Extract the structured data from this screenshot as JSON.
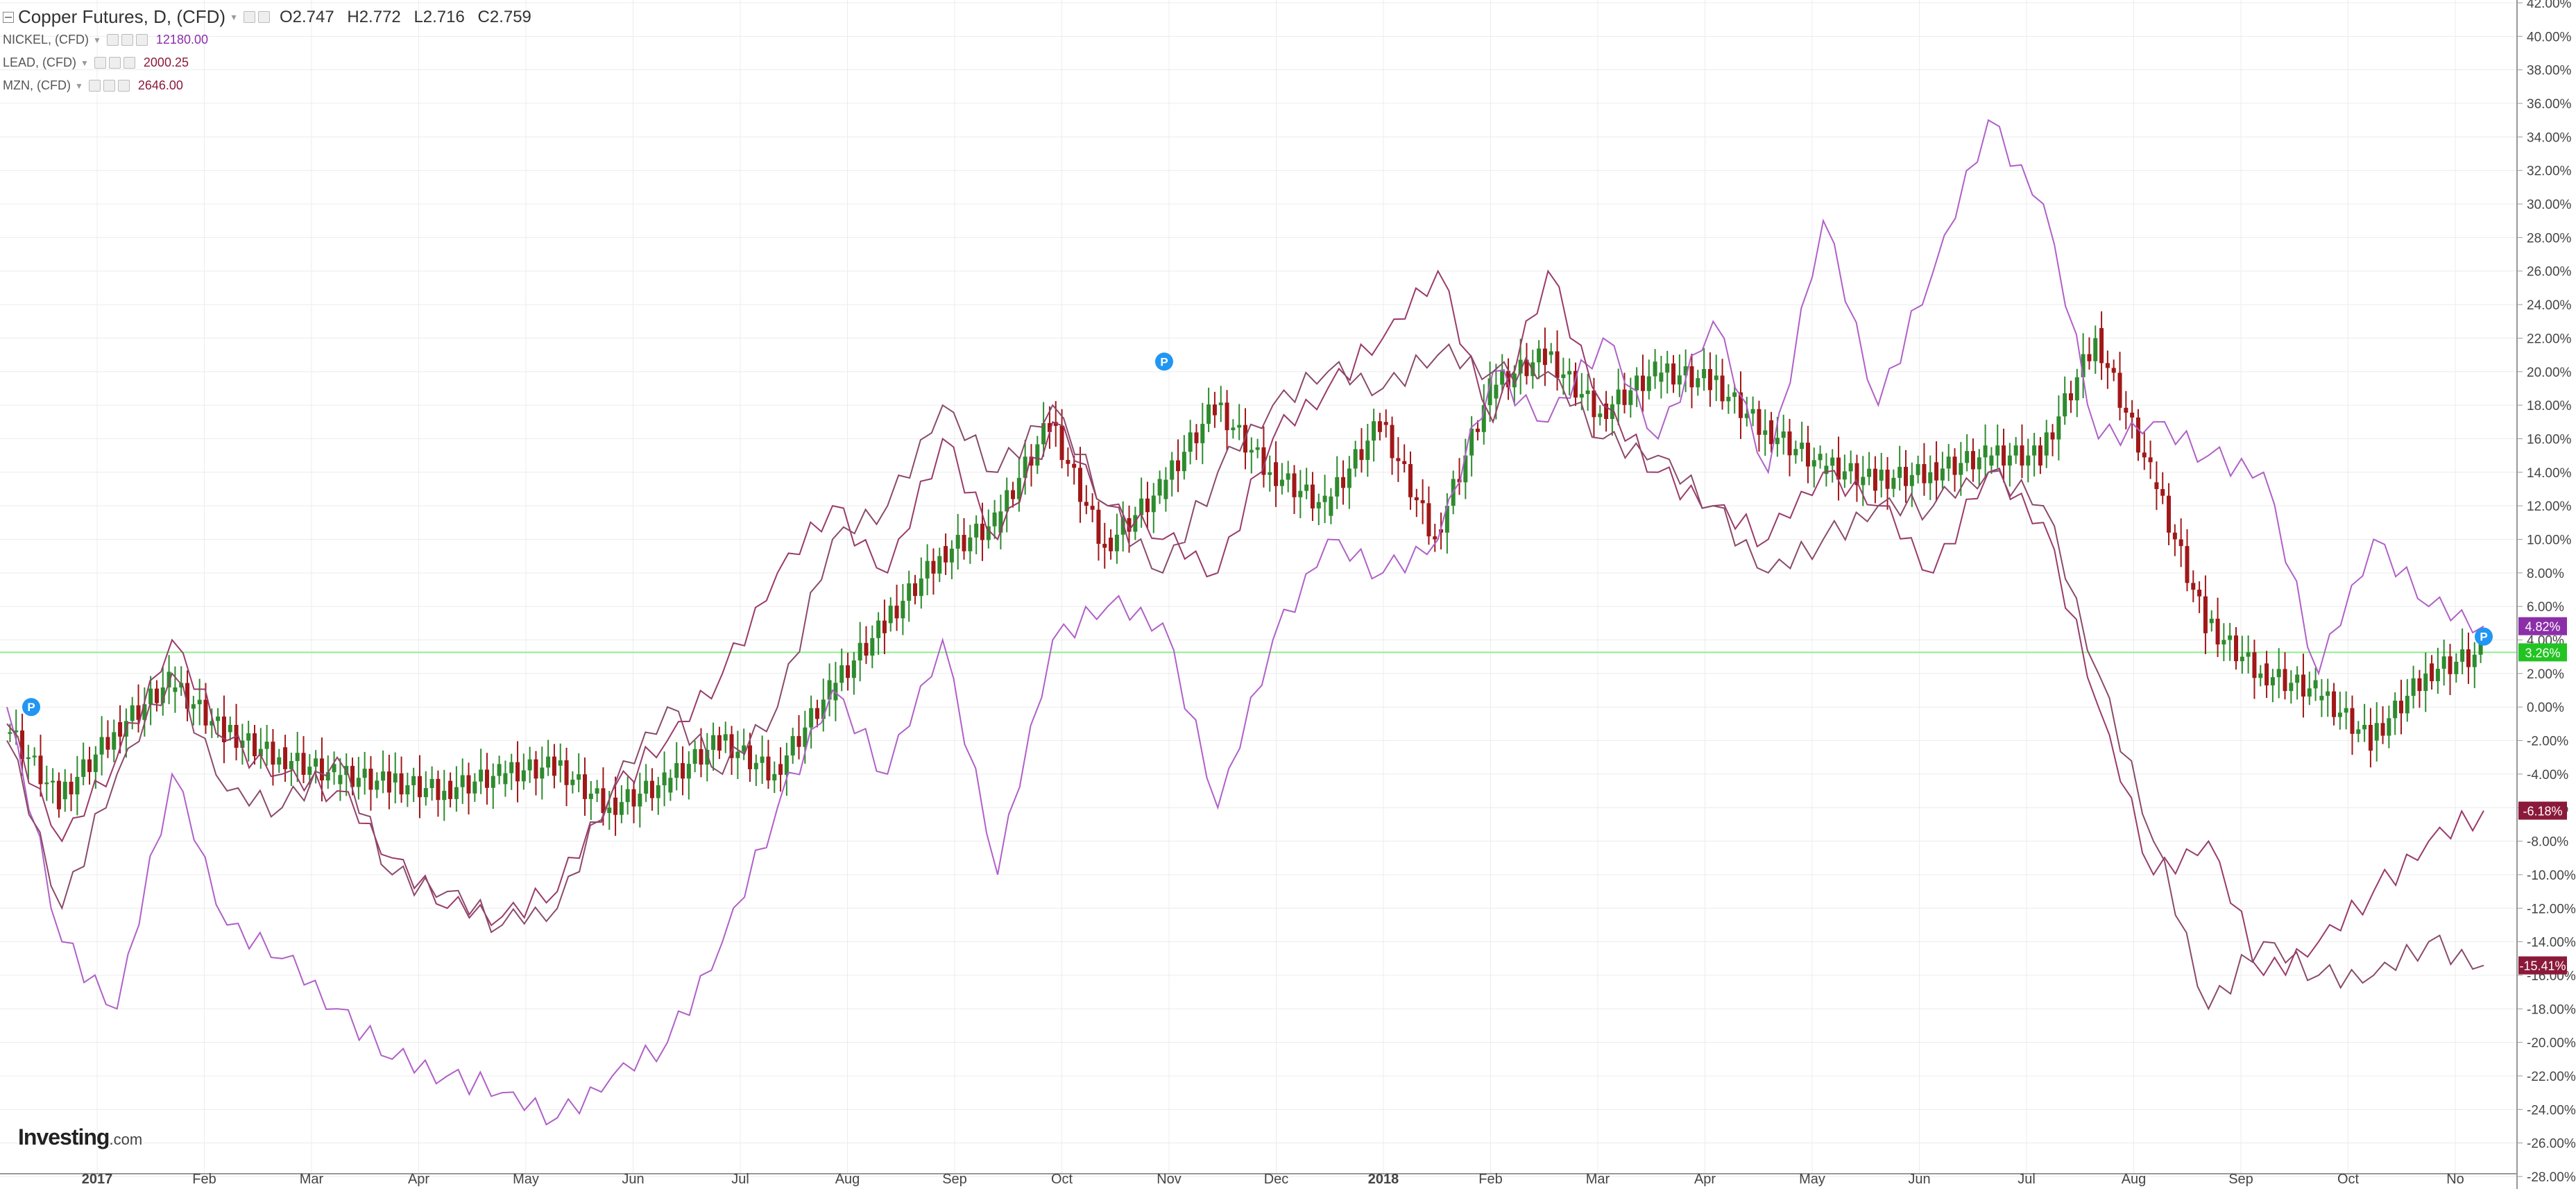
{
  "legend": {
    "main_label": "Copper Futures, D, (CFD)",
    "open": "O2.747",
    "high": "H2.772",
    "low": "L2.716",
    "close": "C2.759",
    "overlays": [
      {
        "label": "NICKEL, (CFD)",
        "value": "12180.00",
        "color": "#8b2fa8"
      },
      {
        "label": "LEAD, (CFD)",
        "value": "2000.25",
        "color": "#8b1a3a"
      },
      {
        "label": "MZN, (CFD)",
        "value": "2646.00",
        "color": "#8b1a3a"
      }
    ]
  },
  "watermark": {
    "brand": "Investing",
    "suffix": ".com"
  },
  "colors": {
    "up_candle": "#2e8b2e",
    "down_candle": "#a01818",
    "nickel_line": "#b060c8",
    "lead_line": "#9a3a6a",
    "mzn_line": "#8a4a6a",
    "zero_line": "#90ee90",
    "grid": "#ececec",
    "axis_text": "#444444"
  },
  "chart_data": {
    "type": "line",
    "x_axis_labels": [
      "2017",
      "Feb",
      "Mar",
      "Apr",
      "May",
      "Jun",
      "Jul",
      "Aug",
      "Sep",
      "Oct",
      "Nov",
      "Dec",
      "2018",
      "Feb",
      "Mar",
      "Apr",
      "May",
      "Jun",
      "Jul",
      "Aug",
      "Sep",
      "Oct",
      "No"
    ],
    "x_axis_bold": [
      "2017",
      "2018"
    ],
    "y_axis_ticks": [
      "42.00%",
      "40.00%",
      "38.00%",
      "36.00%",
      "34.00%",
      "32.00%",
      "30.00%",
      "28.00%",
      "26.00%",
      "24.00%",
      "22.00%",
      "20.00%",
      "18.00%",
      "16.00%",
      "14.00%",
      "12.00%",
      "10.00%",
      "8.00%",
      "6.00%",
      "4.00%",
      "2.00%",
      "0.00%",
      "-2.00%",
      "-4.00%",
      "-6.00%",
      "-8.00%",
      "-10.00%",
      "-12.00%",
      "-14.00%",
      "-16.00%",
      "-18.00%",
      "-20.00%",
      "-22.00%",
      "-24.00%",
      "-26.00%",
      "-28.00%"
    ],
    "ylim": [
      -28,
      42
    ],
    "current_labels": [
      {
        "text": "4.82%",
        "color": "#8b2fa8"
      },
      {
        "text": "3.26%",
        "color": "#22c422"
      },
      {
        "text": "-6.18%",
        "color": "#8b1a3a"
      },
      {
        "text": "-15.41%",
        "color": "#8b1a3a"
      }
    ],
    "event_markers": [
      "P",
      "P"
    ],
    "series": [
      {
        "name": "Copper Futures, D, (CFD)",
        "kind": "candles",
        "x": [
          0,
          0.5,
          1,
          1.5,
          2,
          2.5,
          3,
          3.5,
          4,
          4.5,
          5,
          5.5,
          6,
          6.5,
          7,
          7.5,
          8,
          8.5,
          9,
          9.5,
          10,
          10.5,
          11,
          11.5,
          12,
          12.5,
          13,
          13.5,
          14,
          14.5,
          15,
          15.5,
          16,
          16.5,
          17,
          17.5,
          18,
          18.5,
          19,
          19.5,
          20,
          20.5,
          21,
          21.5,
          22,
          22.5
        ],
        "y": [
          -1.0,
          -5.5,
          -1.5,
          1.5,
          -1.5,
          -3.0,
          -4.0,
          -4.5,
          -5.0,
          -4.0,
          -3.5,
          -6.0,
          -4.5,
          -2.0,
          -4.0,
          1.0,
          5.0,
          9.0,
          11.0,
          17.0,
          9.5,
          13.0,
          18.0,
          14.0,
          12.0,
          17.0,
          10.0,
          19.0,
          21.0,
          17.5,
          20.0,
          19.5,
          16.5,
          14.5,
          13.5,
          14.0,
          15.0,
          15.0,
          22.0,
          14.0,
          5.0,
          2.0,
          1.0,
          -2.0,
          2.0,
          3.26
        ]
      },
      {
        "name": "NICKEL, (CFD)",
        "kind": "line",
        "x": [
          0,
          0.5,
          1,
          1.5,
          2,
          2.5,
          3,
          3.5,
          4,
          4.5,
          5,
          5.5,
          6,
          6.5,
          7,
          7.5,
          8,
          8.5,
          9,
          9.5,
          10,
          10.5,
          11,
          11.5,
          12,
          12.5,
          13,
          13.5,
          14,
          14.5,
          15,
          15.5,
          16,
          16.5,
          17,
          17.5,
          18,
          18.5,
          19,
          19.5,
          20,
          20.5,
          21,
          21.5,
          22,
          22.5
        ],
        "y": [
          0.0,
          -14.0,
          -18.0,
          -4.0,
          -13.0,
          -15.0,
          -18.0,
          -21.0,
          -22.0,
          -23.0,
          -24.5,
          -22.0,
          -20.0,
          -14.0,
          -6.0,
          1.0,
          -4.0,
          4.0,
          -10.0,
          4.0,
          6.0,
          5.0,
          -6.0,
          4.0,
          10.0,
          8.0,
          10.0,
          20.0,
          17.0,
          22.0,
          16.0,
          23.0,
          14.0,
          29.0,
          18.0,
          26.0,
          35.0,
          30.0,
          16.0,
          17.0,
          15.0,
          14.0,
          2.0,
          10.0,
          6.0,
          4.82
        ]
      },
      {
        "name": "LEAD, (CFD)",
        "kind": "line",
        "x": [
          0,
          0.5,
          1,
          1.5,
          2,
          2.5,
          3,
          3.5,
          4,
          4.5,
          5,
          5.5,
          6,
          6.5,
          7,
          7.5,
          8,
          8.5,
          9,
          9.5,
          10,
          10.5,
          11,
          11.5,
          12,
          12.5,
          13,
          13.5,
          14,
          14.5,
          15,
          15.5,
          16,
          16.5,
          17,
          17.5,
          18,
          18.5,
          19,
          19.5,
          20,
          20.5,
          21,
          21.5,
          22,
          22.5
        ],
        "y": [
          -1.0,
          -8.0,
          -3.0,
          4.0,
          -2.0,
          -4.0,
          -5.0,
          -9.0,
          -12.0,
          -12.5,
          -11.0,
          -5.0,
          -2.0,
          2.0,
          8.0,
          12.0,
          8.0,
          16.0,
          10.0,
          17.0,
          12.0,
          10.0,
          8.0,
          16.0,
          19.0,
          22.0,
          26.0,
          17.0,
          26.0,
          18.0,
          14.0,
          12.0,
          10.0,
          14.0,
          12.0,
          8.0,
          14.0,
          11.0,
          0.0,
          -10.0,
          -8.0,
          -16.0,
          -14.0,
          -11.0,
          -8.0,
          -6.18
        ]
      },
      {
        "name": "MZN, (CFD)",
        "kind": "line",
        "x": [
          0,
          0.5,
          1,
          1.5,
          2,
          2.5,
          3,
          3.5,
          4,
          4.5,
          5,
          5.5,
          6,
          6.5,
          7,
          7.5,
          8,
          8.5,
          9,
          9.5,
          10,
          10.5,
          11,
          11.5,
          12,
          12.5,
          13,
          13.5,
          14,
          14.5,
          15,
          15.5,
          16,
          16.5,
          17,
          17.5,
          18,
          18.5,
          19,
          19.5,
          20,
          20.5,
          21,
          21.5,
          22,
          22.5
        ],
        "y": [
          -2.0,
          -12.0,
          -4.0,
          2.0,
          -5.0,
          -6.0,
          -3.0,
          -10.0,
          -11.0,
          -13.0,
          -12.0,
          -5.0,
          0.0,
          -4.0,
          0.0,
          10.0,
          12.0,
          18.0,
          14.0,
          18.0,
          12.0,
          8.0,
          14.0,
          18.0,
          20.0,
          19.0,
          21.0,
          20.0,
          20.0,
          16.0,
          15.0,
          12.0,
          8.0,
          10.0,
          12.0,
          12.0,
          14.0,
          12.0,
          2.0,
          -8.0,
          -18.0,
          -14.0,
          -16.0,
          -16.0,
          -14.0,
          -15.41
        ]
      }
    ]
  }
}
